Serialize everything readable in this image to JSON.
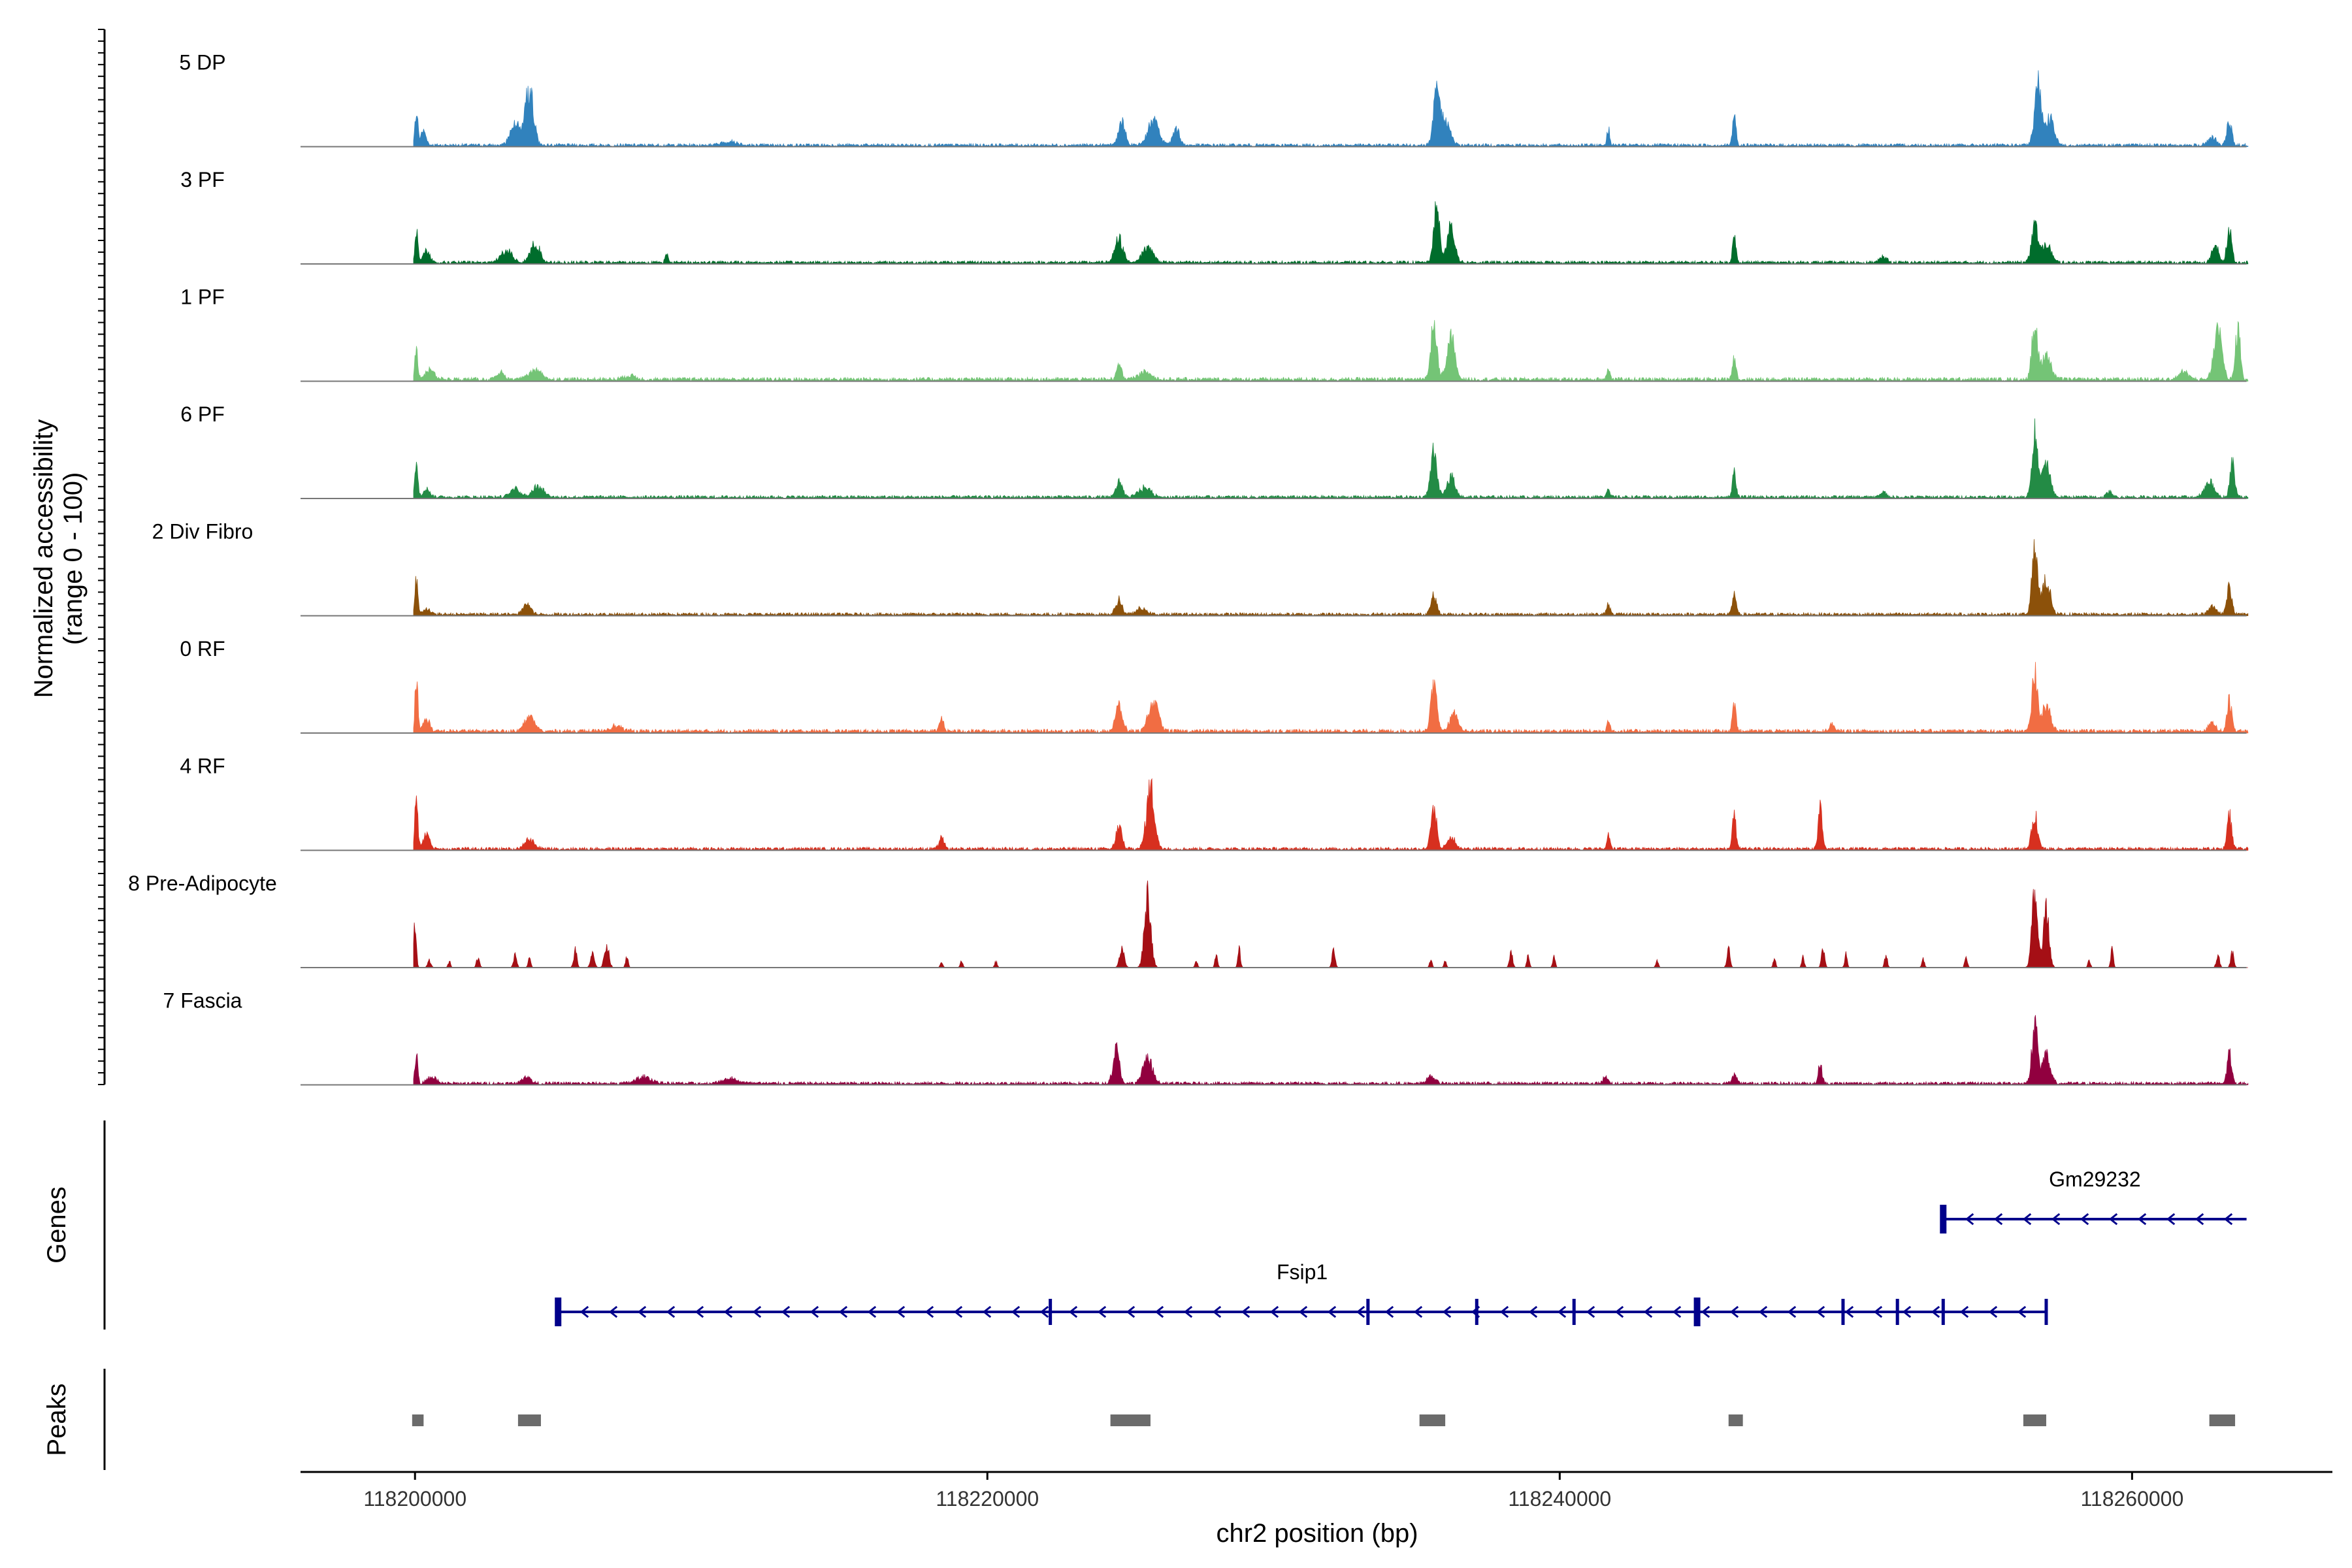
{
  "chart_data": {
    "type": "area",
    "title": "",
    "xlabel": "chr2 position (bp)",
    "ylabel_line1": "Normalized accessibility",
    "ylabel_line2": "(range 0 - 100)",
    "xlim": [
      118196000,
      118267000
    ],
    "x_ticks": [
      118200000,
      118220000,
      118240000,
      118260000
    ],
    "x_tick_labels": [
      "118200000",
      "118220000",
      "118240000",
      "118260000"
    ],
    "ylim": [
      0,
      100
    ],
    "region_end": 118264000,
    "tracks": [
      {
        "name": "5 DP",
        "color": "#3182bd",
        "peaks": [
          [
            118200050,
            60,
            90
          ],
          [
            118200300,
            25,
            150
          ],
          [
            118204000,
            95,
            250
          ],
          [
            118203500,
            40,
            300
          ],
          [
            118211000,
            6,
            500
          ],
          [
            118224700,
            35,
            220
          ],
          [
            118225800,
            38,
            350
          ],
          [
            118226600,
            28,
            200
          ],
          [
            118235700,
            85,
            200
          ],
          [
            118236000,
            40,
            300
          ],
          [
            118241700,
            25,
            90
          ],
          [
            118246100,
            48,
            110
          ],
          [
            118256700,
            100,
            200
          ],
          [
            118257100,
            45,
            300
          ],
          [
            118263400,
            40,
            150
          ],
          [
            118262800,
            12,
            250
          ]
        ],
        "base": 4
      },
      {
        "name": "3 PF",
        "color": "#006d2c",
        "peaks": [
          [
            118200050,
            55,
            90
          ],
          [
            118200400,
            20,
            200
          ],
          [
            118203200,
            20,
            350
          ],
          [
            118204200,
            30,
            300
          ],
          [
            118208800,
            14,
            100
          ],
          [
            118224600,
            38,
            250
          ],
          [
            118225600,
            25,
            350
          ],
          [
            118235700,
            95,
            180
          ],
          [
            118236200,
            55,
            250
          ],
          [
            118246100,
            42,
            110
          ],
          [
            118251300,
            10,
            200
          ],
          [
            118256600,
            60,
            200
          ],
          [
            118257000,
            30,
            300
          ],
          [
            118262900,
            30,
            200
          ],
          [
            118263400,
            55,
            150
          ]
        ],
        "base": 4
      },
      {
        "name": "1 PF",
        "color": "#74c476",
        "peaks": [
          [
            118200050,
            55,
            90
          ],
          [
            118200500,
            15,
            300
          ],
          [
            118203000,
            12,
            200
          ],
          [
            118204200,
            15,
            400
          ],
          [
            118207500,
            6,
            400
          ],
          [
            118224600,
            30,
            150
          ],
          [
            118225500,
            12,
            400
          ],
          [
            118235600,
            85,
            200
          ],
          [
            118236200,
            65,
            250
          ],
          [
            118241700,
            20,
            100
          ],
          [
            118246100,
            32,
            120
          ],
          [
            118256600,
            88,
            180
          ],
          [
            118257000,
            40,
            300
          ],
          [
            118263000,
            80,
            250
          ],
          [
            118263700,
            85,
            150
          ],
          [
            118261800,
            12,
            300
          ]
        ],
        "base": 5
      },
      {
        "name": "6 PF",
        "color": "#238b45",
        "peaks": [
          [
            118200050,
            60,
            90
          ],
          [
            118200400,
            15,
            200
          ],
          [
            118203500,
            14,
            300
          ],
          [
            118204300,
            18,
            350
          ],
          [
            118224600,
            25,
            200
          ],
          [
            118225500,
            15,
            400
          ],
          [
            118235600,
            70,
            200
          ],
          [
            118236200,
            35,
            250
          ],
          [
            118241700,
            15,
            100
          ],
          [
            118246100,
            45,
            110
          ],
          [
            118251300,
            8,
            200
          ],
          [
            118256600,
            100,
            180
          ],
          [
            118257000,
            55,
            250
          ],
          [
            118259200,
            10,
            150
          ],
          [
            118262700,
            25,
            300
          ],
          [
            118263500,
            55,
            150
          ]
        ],
        "base": 4
      },
      {
        "name": "2 Div Fibro",
        "color": "#8c510a",
        "peaks": [
          [
            118200050,
            58,
            90
          ],
          [
            118200400,
            10,
            200
          ],
          [
            118203900,
            18,
            250
          ],
          [
            118224600,
            22,
            200
          ],
          [
            118225400,
            10,
            300
          ],
          [
            118235600,
            30,
            180
          ],
          [
            118241700,
            18,
            100
          ],
          [
            118246100,
            38,
            110
          ],
          [
            118256600,
            100,
            180
          ],
          [
            118257000,
            55,
            250
          ],
          [
            118262800,
            12,
            250
          ],
          [
            118263400,
            48,
            150
          ]
        ],
        "base": 4
      },
      {
        "name": "0 RF",
        "color": "#f16d43",
        "peaks": [
          [
            118200050,
            90,
            90
          ],
          [
            118200400,
            20,
            200
          ],
          [
            118204000,
            25,
            300
          ],
          [
            118207000,
            8,
            400
          ],
          [
            118218400,
            22,
            120
          ],
          [
            118224600,
            40,
            220
          ],
          [
            118225800,
            48,
            300
          ],
          [
            118235600,
            78,
            180
          ],
          [
            118236300,
            30,
            250
          ],
          [
            118241700,
            18,
            100
          ],
          [
            118246100,
            50,
            110
          ],
          [
            118249500,
            12,
            150
          ],
          [
            118256600,
            95,
            180
          ],
          [
            118257000,
            45,
            250
          ],
          [
            118263400,
            48,
            150
          ],
          [
            118262800,
            18,
            200
          ]
        ],
        "base": 5
      },
      {
        "name": "4 RF",
        "color": "#d7301f",
        "peaks": [
          [
            118200050,
            90,
            90
          ],
          [
            118200400,
            25,
            200
          ],
          [
            118204000,
            15,
            300
          ],
          [
            118218400,
            18,
            150
          ],
          [
            118224600,
            38,
            180
          ],
          [
            118225700,
            100,
            250
          ],
          [
            118235600,
            65,
            180
          ],
          [
            118236200,
            20,
            250
          ],
          [
            118241700,
            22,
            100
          ],
          [
            118246100,
            50,
            120
          ],
          [
            118249100,
            62,
            130
          ],
          [
            118256600,
            55,
            180
          ],
          [
            118263400,
            55,
            140
          ]
        ],
        "base": 4
      },
      {
        "name": "8 Pre-Adipocyte",
        "color": "#a50f15",
        "peaks": [
          [
            118200000,
            82,
            80
          ],
          [
            118200500,
            12,
            100
          ],
          [
            118201200,
            10,
            80
          ],
          [
            118202200,
            15,
            100
          ],
          [
            118203500,
            22,
            100
          ],
          [
            118204000,
            18,
            80
          ],
          [
            118205600,
            28,
            100
          ],
          [
            118206200,
            22,
            120
          ],
          [
            118206700,
            38,
            140
          ],
          [
            118207400,
            20,
            80
          ],
          [
            118218400,
            10,
            80
          ],
          [
            118219100,
            12,
            80
          ],
          [
            118220300,
            10,
            80
          ],
          [
            118224700,
            30,
            150
          ],
          [
            118225600,
            120,
            200
          ],
          [
            118227300,
            12,
            80
          ],
          [
            118228000,
            25,
            80
          ],
          [
            118228800,
            30,
            80
          ],
          [
            118232100,
            28,
            100
          ],
          [
            118235500,
            12,
            80
          ],
          [
            118236000,
            10,
            80
          ],
          [
            118238300,
            25,
            100
          ],
          [
            118238900,
            22,
            80
          ],
          [
            118239800,
            18,
            80
          ],
          [
            118243400,
            12,
            80
          ],
          [
            118245900,
            30,
            100
          ],
          [
            118247500,
            15,
            80
          ],
          [
            118248500,
            18,
            80
          ],
          [
            118249200,
            30,
            100
          ],
          [
            118250000,
            22,
            80
          ],
          [
            118251400,
            22,
            80
          ],
          [
            118252700,
            15,
            80
          ],
          [
            118254200,
            18,
            80
          ],
          [
            118256600,
            120,
            180
          ],
          [
            118257000,
            90,
            180
          ],
          [
            118258500,
            12,
            80
          ],
          [
            118259300,
            28,
            80
          ],
          [
            118263000,
            20,
            100
          ],
          [
            118263500,
            25,
            100
          ]
        ],
        "base": 0
      },
      {
        "name": "7 Fascia",
        "color": "#91003f",
        "peaks": [
          [
            118200050,
            45,
            90
          ],
          [
            118200600,
            10,
            300
          ],
          [
            118203900,
            12,
            250
          ],
          [
            118208000,
            10,
            500
          ],
          [
            118211000,
            8,
            500
          ],
          [
            118224500,
            55,
            200
          ],
          [
            118225600,
            40,
            300
          ],
          [
            118235500,
            12,
            250
          ],
          [
            118241600,
            10,
            150
          ],
          [
            118246100,
            15,
            150
          ],
          [
            118249100,
            30,
            120
          ],
          [
            118256600,
            95,
            180
          ],
          [
            118257000,
            45,
            250
          ],
          [
            118263400,
            50,
            140
          ]
        ],
        "base": 4
      }
    ],
    "genes_label": "Genes",
    "peaks_label": "Peaks",
    "genes": [
      {
        "name": "Fsip1",
        "start": 118205000,
        "end": 118257000,
        "strand": "-",
        "exons": [
          118205000,
          118222200,
          118233300,
          118237100,
          118240500,
          118244800,
          118249900,
          118251800,
          118253400,
          118257000
        ]
      },
      {
        "name": "Gm29232",
        "start": 118253400,
        "end": 118264000,
        "strand": "-",
        "exons": [
          118253400
        ]
      }
    ],
    "gene_color": "#00008b",
    "peak_color": "#6b6b6b",
    "peak_regions": [
      [
        118199900,
        118200300
      ],
      [
        118203600,
        118204400
      ],
      [
        118224300,
        118225700
      ],
      [
        118235100,
        118236000
      ],
      [
        118245900,
        118246400
      ],
      [
        118256200,
        118257000
      ],
      [
        118262700,
        118263600
      ]
    ]
  }
}
